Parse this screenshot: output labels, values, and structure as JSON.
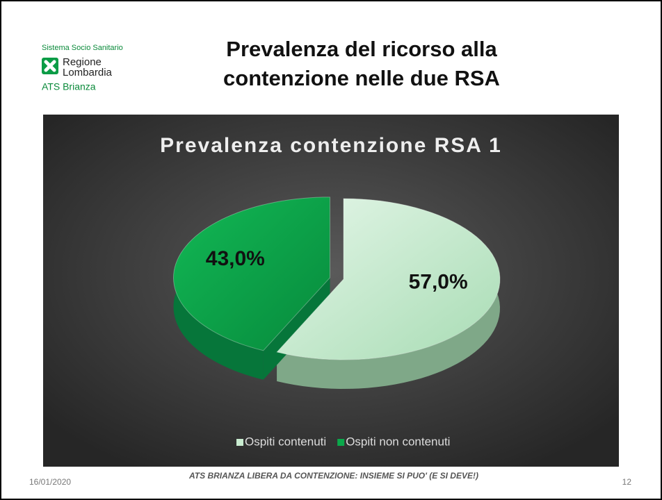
{
  "header": {
    "system": "Sistema Socio Sanitario",
    "region_line1": "Regione",
    "region_line2": "Lombardia",
    "agency": "ATS Brianza",
    "title": "Prevalenza del ricorso alla contenzione nelle due RSA"
  },
  "chart_data": {
    "type": "pie",
    "title": "Prevalenza contenzione RSA 1",
    "categories": [
      "Ospiti contenuti",
      "Ospiti non contenuti"
    ],
    "values": [
      57,
      43
    ],
    "value_labels": [
      "57,0%",
      "43,0%"
    ],
    "colors": [
      "#c9ecd0",
      "#0aa84a"
    ],
    "legend": "bottom"
  },
  "footer": {
    "date": "16/01/2020",
    "text": "ATS BRIANZA LIBERA DA CONTENZIONE: INSIEME SI PUO' (E SI DEVE!)",
    "page": "12"
  }
}
